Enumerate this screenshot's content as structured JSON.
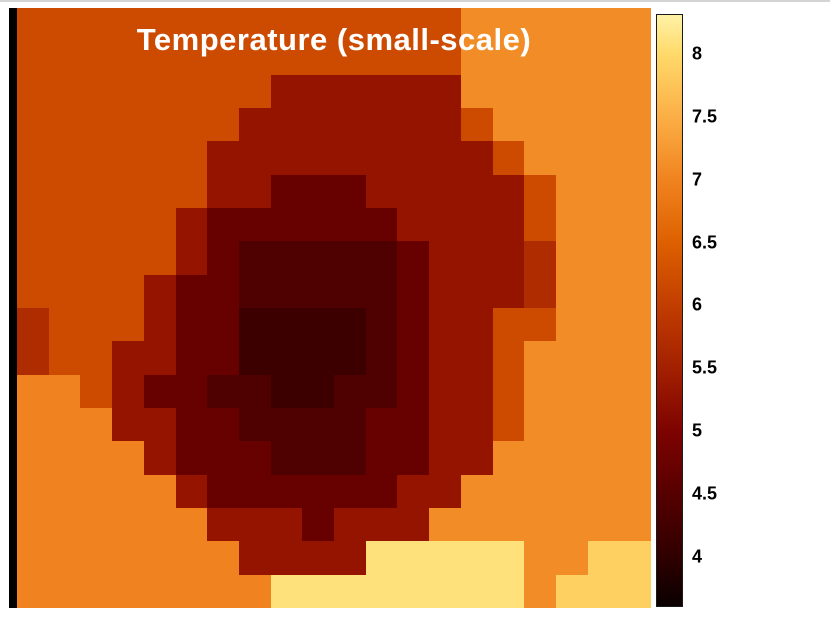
{
  "figure": {
    "background": "#ffffff",
    "left_edge_color": "#000000"
  },
  "chart_data": {
    "type": "heatmap",
    "title": "Temperature (small-scale)",
    "variable": "Temperature",
    "title_color": "#ffffff",
    "grid_cols": 20,
    "grid_rows": 18,
    "value_range": [
      3.6,
      8.32
    ],
    "legend_position": "right-colorbar",
    "grid": "off",
    "values": [
      [
        6.2,
        6.2,
        6.2,
        6.2,
        6.2,
        6.2,
        6.2,
        6.2,
        6.2,
        6.2,
        6.2,
        6.2,
        6.2,
        6.2,
        7.1,
        7.1,
        7.1,
        7.1,
        7.1,
        7.1
      ],
      [
        6.2,
        6.2,
        6.2,
        6.2,
        6.2,
        6.2,
        6.2,
        6.2,
        6.2,
        6.2,
        6.2,
        6.2,
        6.2,
        6.2,
        7.1,
        7.1,
        7.1,
        7.1,
        7.1,
        7.1
      ],
      [
        6.2,
        6.2,
        6.2,
        6.2,
        6.2,
        6.2,
        6.2,
        6.2,
        5.3,
        5.3,
        5.3,
        5.3,
        5.3,
        5.3,
        7.1,
        7.1,
        7.1,
        7.1,
        7.1,
        7.1
      ],
      [
        6.2,
        6.2,
        6.2,
        6.2,
        6.2,
        6.2,
        6.2,
        5.3,
        5.3,
        5.3,
        5.3,
        5.3,
        5.3,
        5.3,
        6.2,
        7.1,
        7.1,
        7.1,
        7.1,
        7.1
      ],
      [
        6.2,
        6.2,
        6.2,
        6.2,
        6.2,
        6.2,
        5.3,
        5.3,
        5.3,
        5.3,
        5.3,
        5.3,
        5.3,
        5.3,
        5.3,
        6.2,
        7.1,
        7.1,
        7.1,
        7.1
      ],
      [
        6.2,
        6.2,
        6.2,
        6.2,
        6.2,
        6.2,
        5.3,
        5.3,
        4.7,
        4.7,
        4.7,
        5.3,
        5.3,
        5.3,
        5.3,
        5.3,
        6.2,
        7.1,
        7.1,
        7.1
      ],
      [
        6.2,
        6.2,
        6.2,
        6.2,
        6.2,
        5.3,
        4.7,
        4.7,
        4.7,
        4.7,
        4.7,
        4.7,
        5.3,
        5.3,
        5.3,
        5.3,
        6.2,
        7.1,
        7.1,
        7.1
      ],
      [
        6.2,
        6.2,
        6.2,
        6.2,
        6.2,
        5.3,
        4.7,
        4.4,
        4.4,
        4.4,
        4.4,
        4.4,
        4.7,
        5.3,
        5.3,
        5.3,
        5.7,
        7.1,
        7.1,
        7.1
      ],
      [
        6.2,
        6.2,
        6.2,
        6.2,
        5.3,
        4.7,
        4.7,
        4.4,
        4.4,
        4.4,
        4.4,
        4.4,
        4.7,
        5.3,
        5.3,
        5.3,
        5.7,
        7.1,
        7.1,
        7.1
      ],
      [
        5.7,
        6.2,
        6.2,
        6.2,
        5.3,
        4.7,
        4.7,
        4.15,
        4.15,
        4.15,
        4.15,
        4.4,
        4.7,
        5.3,
        5.3,
        6.2,
        6.2,
        7.1,
        7.1,
        7.1
      ],
      [
        5.7,
        6.2,
        6.2,
        5.3,
        5.3,
        4.7,
        4.7,
        4.15,
        4.15,
        4.15,
        4.15,
        4.4,
        4.7,
        5.3,
        5.3,
        6.2,
        7.1,
        7.1,
        7.1,
        7.1
      ],
      [
        7.0,
        7.0,
        6.2,
        5.3,
        4.7,
        4.7,
        4.4,
        4.4,
        4.15,
        4.15,
        4.4,
        4.4,
        4.7,
        5.3,
        5.3,
        6.2,
        7.1,
        7.1,
        7.1,
        7.1
      ],
      [
        7.0,
        7.0,
        7.0,
        5.3,
        5.3,
        4.7,
        4.7,
        4.4,
        4.4,
        4.4,
        4.4,
        4.7,
        4.7,
        5.3,
        5.3,
        6.2,
        7.1,
        7.1,
        7.1,
        7.1
      ],
      [
        7.0,
        7.0,
        7.0,
        7.0,
        5.3,
        4.7,
        4.7,
        4.7,
        4.4,
        4.4,
        4.4,
        4.7,
        4.7,
        5.3,
        5.3,
        7.1,
        7.1,
        7.1,
        7.1,
        7.1
      ],
      [
        7.0,
        7.0,
        7.0,
        7.0,
        7.0,
        5.3,
        4.7,
        4.7,
        4.7,
        4.7,
        4.7,
        4.7,
        5.3,
        5.3,
        7.1,
        7.1,
        7.1,
        7.1,
        7.1,
        7.1
      ],
      [
        7.0,
        7.0,
        7.0,
        7.0,
        7.0,
        7.0,
        5.3,
        5.3,
        5.3,
        4.7,
        5.3,
        5.3,
        5.3,
        7.1,
        7.1,
        7.1,
        7.1,
        7.1,
        7.1,
        7.1
      ],
      [
        7.0,
        7.0,
        7.0,
        7.0,
        7.0,
        7.0,
        7.0,
        5.3,
        5.3,
        5.3,
        5.3,
        8.1,
        8.1,
        8.1,
        8.1,
        8.1,
        7.1,
        7.1,
        7.9,
        7.9
      ],
      [
        7.0,
        7.0,
        7.0,
        7.0,
        7.0,
        7.0,
        7.0,
        7.0,
        8.1,
        8.1,
        8.1,
        8.1,
        8.1,
        8.1,
        8.1,
        8.1,
        7.1,
        7.9,
        7.9,
        7.9
      ]
    ],
    "colormap": {
      "name": "dark-maroon-to-pale-yellow",
      "stops": [
        [
          3.6,
          "#0a0000"
        ],
        [
          4.0,
          "#300000"
        ],
        [
          4.5,
          "#570000"
        ],
        [
          5.0,
          "#7e0300"
        ],
        [
          5.5,
          "#a32000"
        ],
        [
          6.0,
          "#c23d00"
        ],
        [
          6.5,
          "#de6000"
        ],
        [
          7.0,
          "#f0831f"
        ],
        [
          7.5,
          "#fbae45"
        ],
        [
          8.0,
          "#ffd969"
        ],
        [
          8.32,
          "#fff2a6"
        ]
      ]
    },
    "colorbar": {
      "min": 3.6,
      "max": 8.32,
      "ticks": [
        8,
        7.5,
        7,
        6.5,
        6,
        5.5,
        5,
        4.5,
        4
      ],
      "tick_labels": [
        "8",
        "7.5",
        "7",
        "6.5",
        "6",
        "5.5",
        "5",
        "4.5",
        "4"
      ]
    }
  }
}
